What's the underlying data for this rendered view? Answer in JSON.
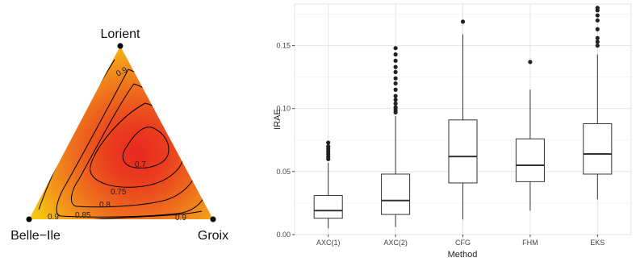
{
  "chart_data": [
    {
      "type": "ternary-heatmap",
      "vertices": {
        "top": "Lorient",
        "left": "Belle−Ile",
        "right": "Groix"
      },
      "contour_levels": [
        "0.7",
        "0.75",
        "0.8",
        "0.85",
        "0.9"
      ],
      "colors": {
        "low": "#e8281f",
        "mid": "#f08a1c",
        "high": "#f6d80a"
      },
      "value_range": [
        0.65,
        0.95
      ]
    },
    {
      "type": "boxplot",
      "xlabel": "Method",
      "ylabel": "IRAE",
      "ylim": [
        0,
        0.183
      ],
      "yticks": [
        0.0,
        0.05,
        0.1,
        0.15
      ],
      "ytick_labels": [
        "0.00",
        "0.05",
        "0.10",
        "0.15"
      ],
      "grid": true,
      "categories": [
        "AXC(1)",
        "AXC(2)",
        "CFG",
        "FHM",
        "EKS"
      ],
      "boxes": [
        {
          "name": "AXC(1)",
          "whisker_low": 0.005,
          "q1": 0.013,
          "median": 0.019,
          "q3": 0.031,
          "whisker_high": 0.057,
          "outliers": [
            0.06,
            0.062,
            0.064,
            0.066,
            0.068,
            0.07,
            0.073
          ]
        },
        {
          "name": "AXC(2)",
          "whisker_low": 0.006,
          "q1": 0.016,
          "median": 0.027,
          "q3": 0.048,
          "whisker_high": 0.094,
          "outliers": [
            0.097,
            0.099,
            0.101,
            0.104,
            0.107,
            0.11,
            0.115,
            0.12,
            0.124,
            0.129,
            0.133,
            0.138,
            0.143,
            0.148
          ]
        },
        {
          "name": "CFG",
          "whisker_low": 0.012,
          "q1": 0.041,
          "median": 0.062,
          "q3": 0.091,
          "whisker_high": 0.159,
          "outliers": [
            0.169
          ]
        },
        {
          "name": "FHM",
          "whisker_low": 0.019,
          "q1": 0.042,
          "median": 0.055,
          "q3": 0.076,
          "whisker_high": 0.115,
          "outliers": [
            0.137
          ]
        },
        {
          "name": "EKS",
          "whisker_low": 0.028,
          "q1": 0.048,
          "median": 0.064,
          "q3": 0.088,
          "whisker_high": 0.143,
          "outliers": [
            0.15,
            0.153,
            0.156,
            0.163,
            0.17,
            0.174,
            0.178,
            0.18
          ]
        }
      ]
    }
  ]
}
